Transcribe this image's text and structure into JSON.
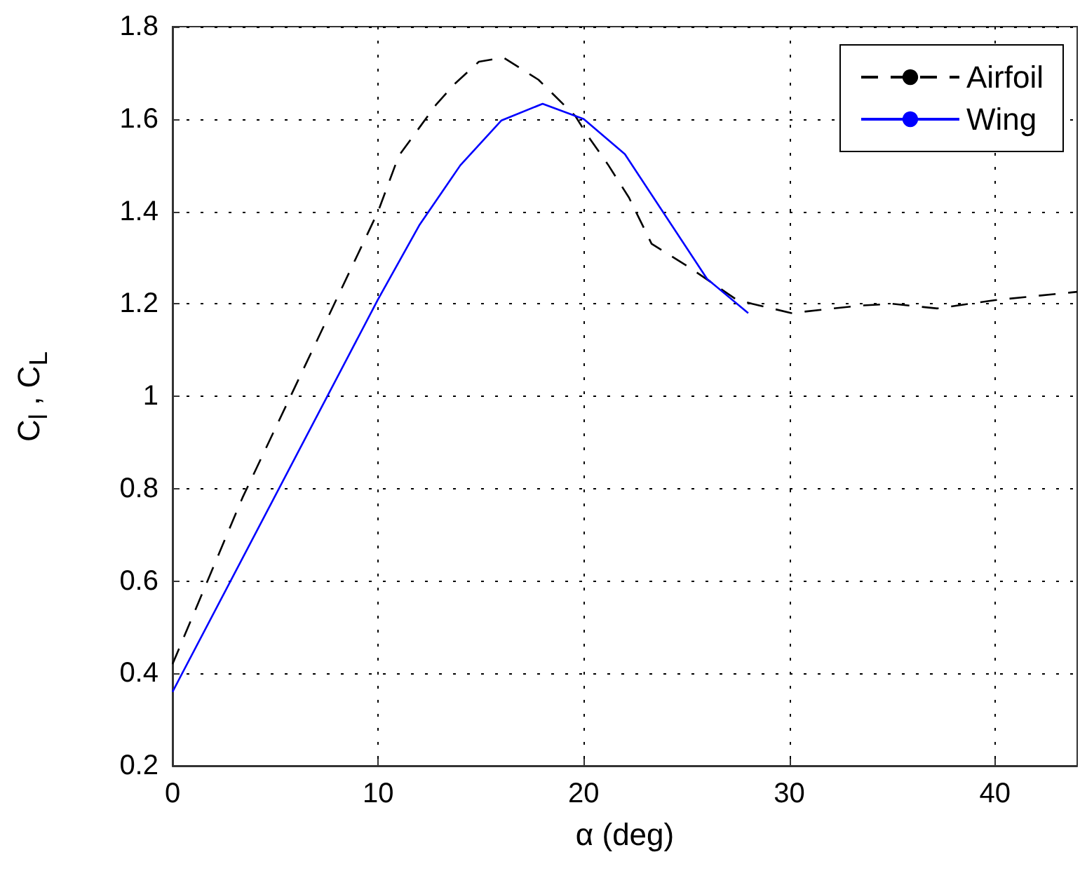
{
  "chart_data": {
    "type": "line",
    "xlabel": "α (deg)",
    "ylabel": "C$_{l}$ , C$_{L}$",
    "xlim": [
      0,
      44
    ],
    "xticks": [
      0,
      10,
      20,
      30,
      40
    ],
    "ylim": [
      0.2,
      1.8
    ],
    "yticks": [
      0.2,
      0.4,
      0.6,
      0.8,
      1,
      1.2,
      1.4,
      1.6,
      1.8
    ],
    "grid": true,
    "legend": "top right",
    "series": [
      {
        "name": "Airfoil",
        "color": "#000000",
        "line_style": "dashed",
        "x": [
          0,
          3.4,
          10,
          11,
          12.8,
          13.7,
          14.9,
          16.1,
          17.8,
          19.6,
          20.1,
          21.2,
          22.2,
          23.3,
          25.1,
          27.4,
          28.2,
          30.1,
          33.4,
          35,
          37.2,
          40,
          44
        ],
        "values": [
          0.42,
          0.78,
          1.4,
          1.52,
          1.63,
          1.675,
          1.724,
          1.733,
          1.685,
          1.606,
          1.57,
          1.5,
          1.43,
          1.33,
          1.28,
          1.21,
          1.2,
          1.18,
          1.196,
          1.2,
          1.19,
          1.208,
          1.226
        ]
      },
      {
        "name": "Wing",
        "color": "#0000ff",
        "line_style": "solid",
        "x": [
          0,
          10,
          12,
          14,
          16,
          18,
          20,
          22,
          26,
          28
        ],
        "values": [
          0.36,
          1.21,
          1.37,
          1.5,
          1.597,
          1.633,
          1.6,
          1.524,
          1.254,
          1.18
        ]
      }
    ]
  }
}
